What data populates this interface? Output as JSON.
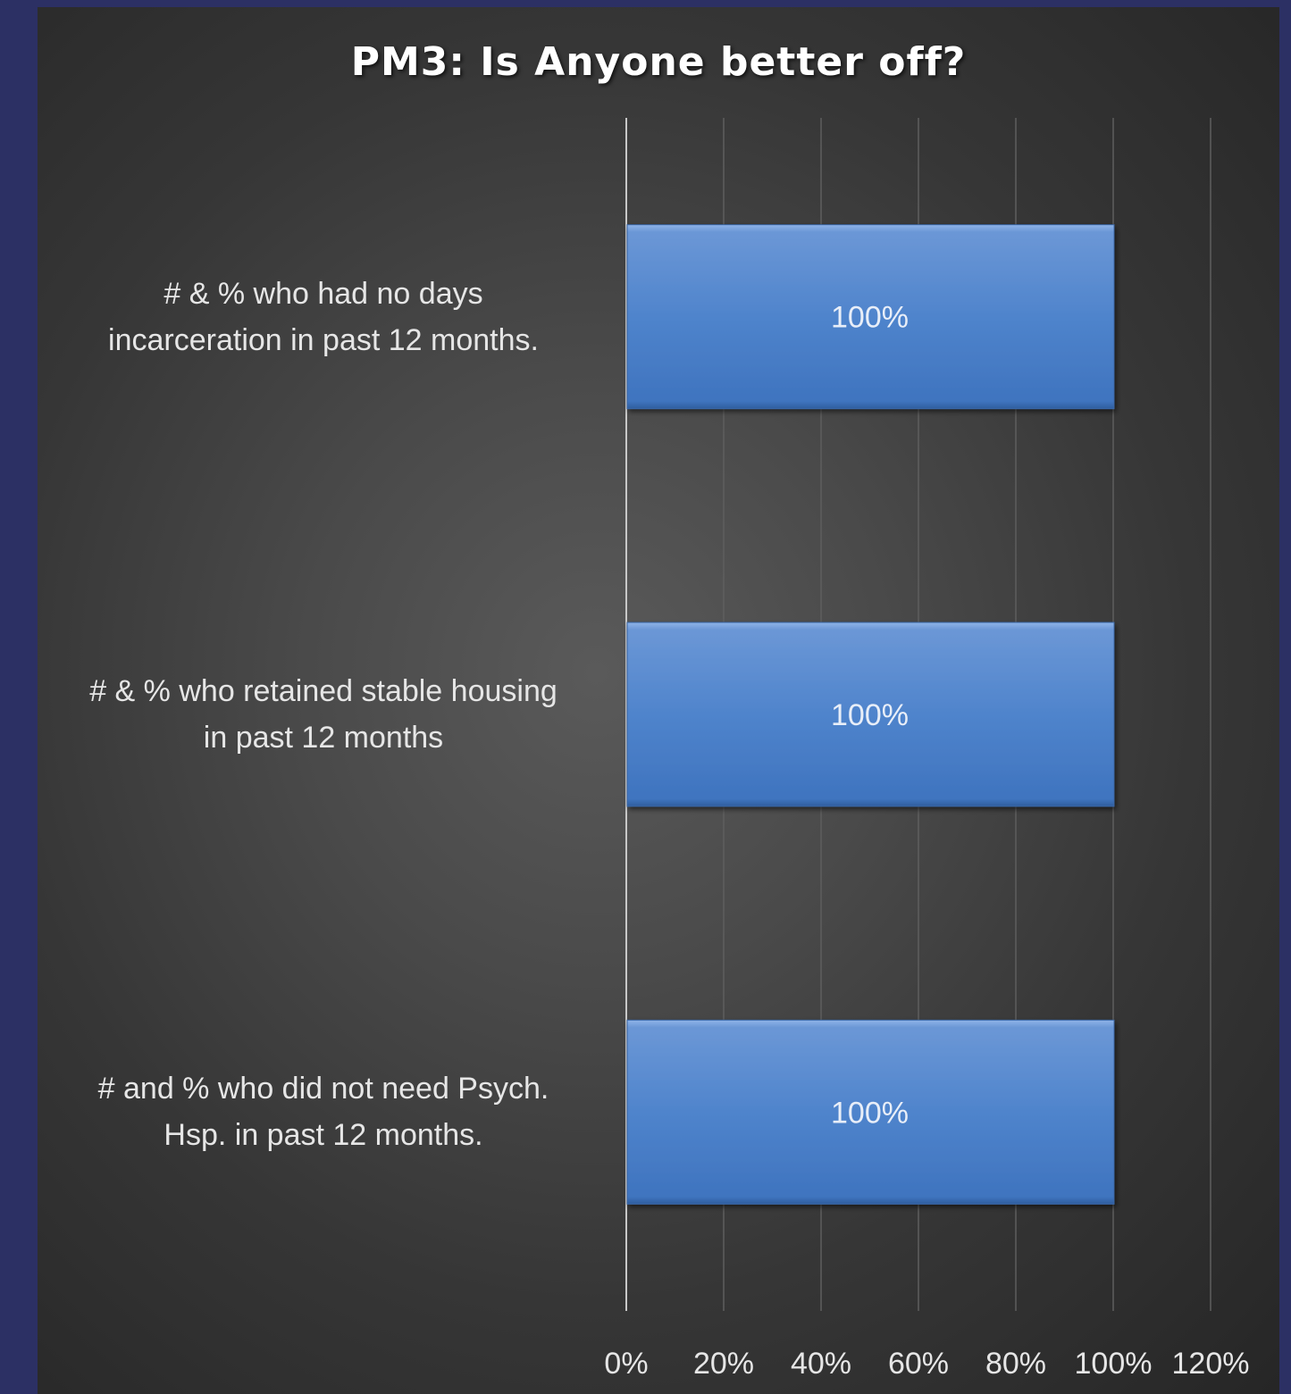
{
  "chart_data": {
    "type": "bar",
    "orientation": "horizontal",
    "title": "PM3: Is Anyone better off?",
    "categories": [
      "# & % who had no days incarceration in past 12 months.",
      "# & % who retained stable housing in past 12 months",
      "# and % who did not need Psych. Hsp. in past 12 months."
    ],
    "category_lines": [
      [
        "# & % who had no days",
        "incarceration in past 12 months."
      ],
      [
        "# & % who retained stable housing",
        "in past 12 months"
      ],
      [
        "# and % who did not need Psych.",
        "Hsp. in past 12 months."
      ]
    ],
    "values": [
      1.0,
      1.0,
      1.0
    ],
    "data_labels": [
      "100%",
      "100%",
      "100%"
    ],
    "xlim": [
      0,
      1.2
    ],
    "xticks": [
      "0%",
      "20%",
      "40%",
      "60%",
      "80%",
      "100%",
      "120%"
    ],
    "xlabel": "",
    "ylabel": "",
    "grid": true,
    "legend": "none",
    "bar_color": "#4a7fc8",
    "background_color": "#444444",
    "frame_color": "#2c3064"
  }
}
